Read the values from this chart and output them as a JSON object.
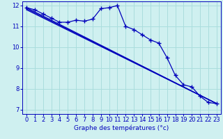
{
  "xlabel": "Graphe des températures (°c)",
  "background_color": "#cff0f0",
  "grid_color": "#aadddd",
  "line_color": "#0000bb",
  "xlim": [
    -0.5,
    23.5
  ],
  "ylim": [
    6.8,
    12.2
  ],
  "yticks": [
    7,
    8,
    9,
    10,
    11,
    12
  ],
  "xticks": [
    0,
    1,
    2,
    3,
    4,
    5,
    6,
    7,
    8,
    9,
    10,
    11,
    12,
    13,
    14,
    15,
    16,
    17,
    18,
    19,
    20,
    21,
    22,
    23
  ],
  "main_x": [
    0,
    1,
    2,
    3,
    4,
    5,
    6,
    7,
    8,
    9,
    10,
    11,
    12,
    13,
    14,
    15,
    16,
    17,
    18,
    19,
    20,
    21,
    22,
    23
  ],
  "main_y": [
    11.9,
    11.8,
    11.6,
    11.4,
    11.2,
    11.2,
    11.3,
    11.25,
    11.35,
    11.85,
    11.9,
    12.0,
    11.0,
    10.85,
    10.6,
    10.35,
    10.2,
    9.5,
    8.65,
    8.2,
    8.1,
    7.65,
    7.35,
    7.3
  ],
  "trend1_x": [
    0,
    23
  ],
  "trend1_y": [
    11.9,
    7.3
  ],
  "trend2_x": [
    0,
    23
  ],
  "trend2_y": [
    11.85,
    7.3
  ],
  "trend3_x": [
    0,
    23
  ],
  "trend3_y": [
    11.8,
    7.3
  ]
}
